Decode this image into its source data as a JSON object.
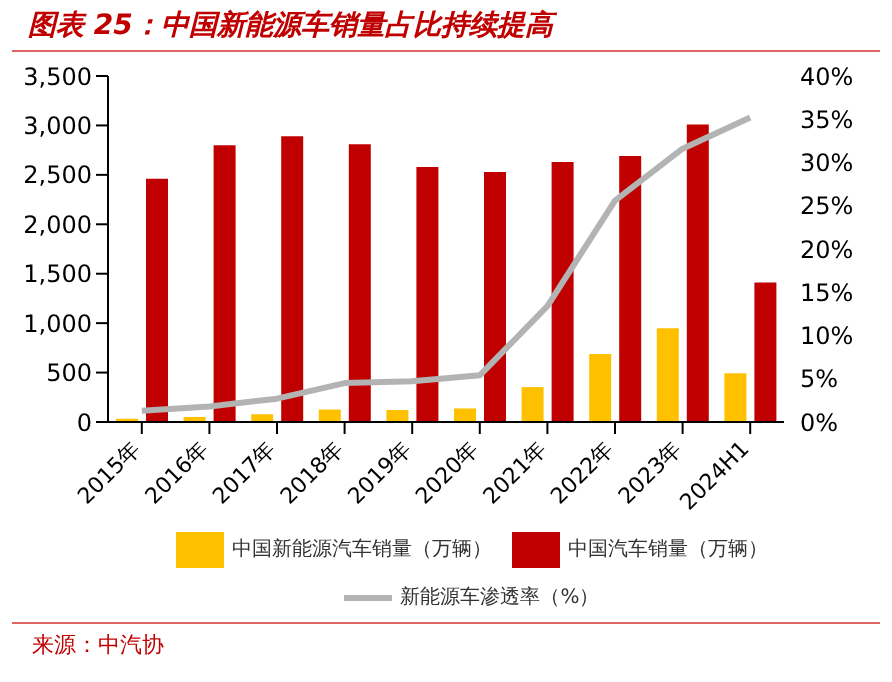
{
  "chart_data": {
    "type": "bar",
    "title": "图表 25：中国新能源车销量占比持续提高",
    "categories": [
      "2015年",
      "2016年",
      "2017年",
      "2018年",
      "2019年",
      "2020年",
      "2021年",
      "2022年",
      "2023年",
      "2024H1"
    ],
    "series": [
      {
        "name": "中国新能源汽车销量（万辆）",
        "color": "#ffc000",
        "values": [
          33,
          51,
          78,
          126,
          121,
          137,
          353,
          689,
          949,
          494
        ]
      },
      {
        "name": "中国汽车销量（万辆）",
        "color": "#c00000",
        "values": [
          2460,
          2800,
          2890,
          2810,
          2580,
          2530,
          2630,
          2690,
          3010,
          1410
        ]
      },
      {
        "name": "新能源车渗透率（%）",
        "type": "line",
        "axis": "y2",
        "color": "#b3b3b3",
        "values": [
          1.3,
          1.8,
          2.7,
          4.5,
          4.7,
          5.4,
          13.4,
          25.6,
          31.6,
          35.2
        ]
      }
    ],
    "ylim": [
      0,
      3500
    ],
    "yticks": [
      0,
      {
        "value": 500,
        "label": "500"
      },
      {
        "value": 1000,
        "label": "1,000"
      },
      {
        "value": 1500,
        "label": "1,500"
      },
      {
        "value": 2000,
        "label": "2,000"
      },
      {
        "value": 2500,
        "label": "2,500"
      },
      {
        "value": 3000,
        "label": "3,000"
      },
      {
        "value": 3500,
        "label": "3,500"
      }
    ],
    "y2lim": [
      0,
      40
    ],
    "y2ticks": [
      {
        "value": 0,
        "label": "0%"
      },
      {
        "value": 5,
        "label": "5%"
      },
      {
        "value": 10,
        "label": "10%"
      },
      {
        "value": 15,
        "label": "15%"
      },
      {
        "value": 20,
        "label": "20%"
      },
      {
        "value": 25,
        "label": "25%"
      },
      {
        "value": 30,
        "label": "30%"
      },
      {
        "value": 35,
        "label": "35%"
      },
      {
        "value": 40,
        "label": "40%"
      }
    ],
    "grid": false,
    "legend": "bottom",
    "marker": "none",
    "line_style": "solid",
    "annotations": [
      "来源：中汽协"
    ]
  }
}
